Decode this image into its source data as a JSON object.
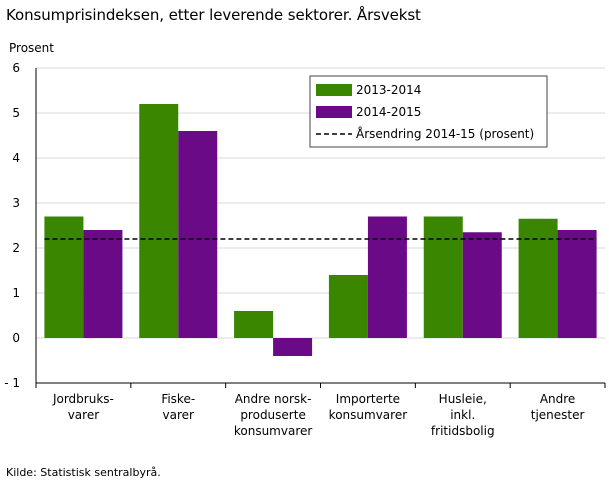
{
  "title": "Konsumprisindeksen, etter leverende sektorer. Årsvekst",
  "source": "Kilde: Statistisk sentralbyrå.",
  "colors": {
    "series1": "#3b8600",
    "series2": "#6a0a86",
    "reference": "#000000",
    "grid": "#d8d8d8"
  },
  "chart_data": {
    "type": "bar",
    "ylabel": "Prosent",
    "xlabel": "",
    "ylim": [
      -1,
      6
    ],
    "yticks": [
      6,
      5,
      4,
      3,
      2,
      1,
      0,
      -1
    ],
    "ytick_labels": [
      "6",
      "5",
      "4",
      "3",
      "2",
      "1",
      "0",
      "- 1"
    ],
    "grid": true,
    "legend_position": "top-right",
    "categories": [
      [
        "Jordbruks-",
        "varer"
      ],
      [
        "Fiske-",
        "varer"
      ],
      [
        "Andre norsk-",
        "produserte",
        "konsumvarer"
      ],
      [
        "Importerte",
        "konsumvarer"
      ],
      [
        "Husleie,",
        "inkl.",
        "fritidsbolig"
      ],
      [
        "Andre",
        "tjenester"
      ]
    ],
    "series": [
      {
        "name": "2013-2014",
        "values": [
          2.7,
          5.2,
          0.6,
          1.4,
          2.7,
          2.65
        ]
      },
      {
        "name": "2014-2015",
        "values": [
          2.4,
          4.6,
          -0.4,
          2.7,
          2.35,
          2.4
        ]
      }
    ],
    "reference_line": {
      "name": "Årsendring 2014-15 (prosent)",
      "value": 2.2
    }
  }
}
